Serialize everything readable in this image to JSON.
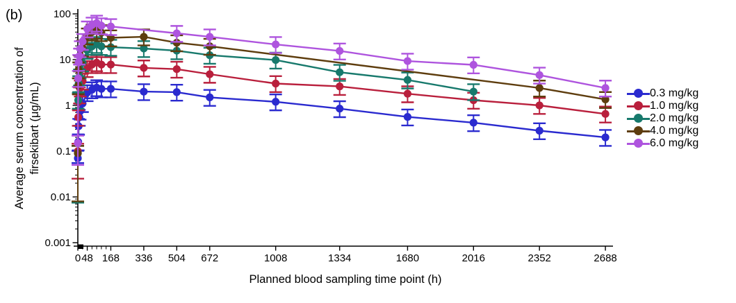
{
  "panel_label": "(b)",
  "chart_data": {
    "type": "line",
    "title": "",
    "xlabel": "Planned blood sampling time point (h)",
    "ylabel": "Average serum concentration of firsekibart (μg/mL)",
    "ylabel_lines": [
      "Average serum concentration of",
      "firsekibart (μg/mL)"
    ],
    "x_axis": {
      "scale": "linear",
      "min": 0,
      "max": 2720,
      "ticks": [
        0,
        48,
        168,
        336,
        504,
        672,
        1008,
        1334,
        1680,
        2016,
        2352,
        2688
      ],
      "minor_ticks": [
        24,
        72,
        96,
        120,
        144
      ]
    },
    "y_axis": {
      "scale": "log",
      "min": 0.001,
      "max": 100,
      "tick_labels": [
        "100",
        "10",
        "1",
        "0.1",
        "0.01",
        "0.001"
      ],
      "tick_values": [
        100,
        10,
        1,
        0.1,
        0.01,
        0.001
      ]
    },
    "legend_position": "right",
    "grid": false,
    "marker": "circle-with-error-bars",
    "error_bars": {
      "lo_factor": 0.65,
      "hi_factor": 1.45
    },
    "series": [
      {
        "name": "0.3 mg/kg",
        "color": "#2A2ACF",
        "t0_err_lo": 0.055,
        "points": [
          [
            0,
            0.07
          ],
          [
            2,
            0.16
          ],
          [
            4,
            0.35
          ],
          [
            8,
            0.55
          ],
          [
            12,
            0.75
          ],
          [
            24,
            1.1
          ],
          [
            48,
            1.9
          ],
          [
            72,
            2.2
          ],
          [
            96,
            2.45
          ],
          [
            120,
            2.3
          ],
          [
            168,
            2.3
          ],
          [
            336,
            2.0
          ],
          [
            504,
            1.95
          ],
          [
            672,
            1.5
          ],
          [
            1008,
            1.2
          ],
          [
            1334,
            0.85
          ],
          [
            1680,
            0.56
          ],
          [
            2016,
            0.42
          ],
          [
            2352,
            0.28
          ],
          [
            2688,
            0.2
          ]
        ]
      },
      {
        "name": "1.0 mg/kg",
        "color": "#B91F3C",
        "t0_err_lo": 0.025,
        "points": [
          [
            0,
            0.1
          ],
          [
            2,
            0.55
          ],
          [
            4,
            1.2
          ],
          [
            8,
            1.7
          ],
          [
            12,
            2.4
          ],
          [
            24,
            3.4
          ],
          [
            48,
            6.4
          ],
          [
            72,
            7.8
          ],
          [
            96,
            8.6
          ],
          [
            120,
            7.8
          ],
          [
            168,
            7.8
          ],
          [
            336,
            6.6
          ],
          [
            504,
            6.2
          ],
          [
            672,
            4.8
          ],
          [
            1008,
            3.0
          ],
          [
            1334,
            2.6
          ],
          [
            1680,
            1.8
          ],
          [
            2016,
            1.3
          ],
          [
            2352,
            1.0
          ],
          [
            2688,
            0.65
          ]
        ]
      },
      {
        "name": "2.0 mg/kg",
        "color": "#17796C",
        "t0_err_lo": 0.0075,
        "points": [
          [
            0,
            0.09
          ],
          [
            2,
            1.3
          ],
          [
            4,
            3.0
          ],
          [
            8,
            4.2
          ],
          [
            12,
            6.0
          ],
          [
            24,
            8.5
          ],
          [
            48,
            16
          ],
          [
            72,
            19.5
          ],
          [
            96,
            21.5
          ],
          [
            120,
            19.5
          ],
          [
            168,
            18.7
          ],
          [
            336,
            17.5
          ],
          [
            504,
            15.7
          ],
          [
            672,
            12.5
          ],
          [
            1008,
            9.8
          ],
          [
            1334,
            5.3
          ],
          [
            1680,
            3.6
          ],
          [
            2016,
            2.0
          ]
        ]
      },
      {
        "name": "4.0 mg/kg",
        "color": "#5E3D0E",
        "t0_err_lo": 0.008,
        "points": [
          [
            0,
            0.09
          ],
          [
            2,
            2.7
          ],
          [
            4,
            6.0
          ],
          [
            8,
            8.5
          ],
          [
            12,
            12
          ],
          [
            24,
            18
          ],
          [
            48,
            33
          ],
          [
            72,
            40
          ],
          [
            96,
            44
          ],
          [
            120,
            39
          ],
          [
            168,
            30
          ],
          [
            336,
            31.5
          ],
          [
            504,
            23.4
          ],
          [
            672,
            19.6
          ],
          [
            2352,
            2.4
          ],
          [
            2688,
            1.35
          ]
        ]
      },
      {
        "name": "6.0 mg/kg",
        "color": "#AE54DE",
        "t0_err_lo": 0.05,
        "points": [
          [
            0,
            0.15
          ],
          [
            2,
            3.9
          ],
          [
            4,
            8.7
          ],
          [
            8,
            12
          ],
          [
            12,
            17.4
          ],
          [
            24,
            25
          ],
          [
            48,
            47
          ],
          [
            72,
            57
          ],
          [
            96,
            63
          ],
          [
            120,
            55
          ],
          [
            168,
            53
          ],
          [
            504,
            37.6
          ],
          [
            672,
            31.5
          ],
          [
            1008,
            21.5
          ],
          [
            1334,
            15.5
          ],
          [
            1680,
            9.3
          ],
          [
            2016,
            7.7
          ],
          [
            2352,
            4.6
          ],
          [
            2688,
            2.4
          ]
        ]
      }
    ]
  }
}
